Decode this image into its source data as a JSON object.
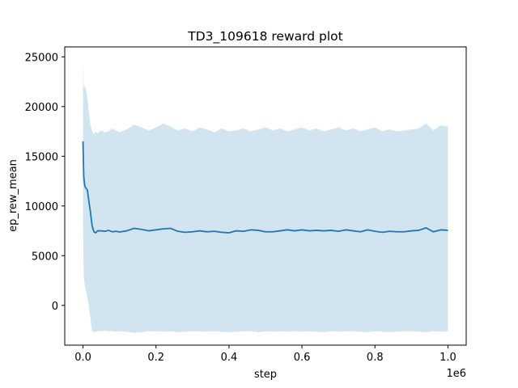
{
  "chart_data": {
    "type": "line",
    "title": "TD3_109618 reward plot",
    "xlabel": "step",
    "ylabel": "ep_rew_mean",
    "x_offset_label": "1e6",
    "xlim": [
      -50000,
      1050000
    ],
    "ylim": [
      -4000,
      26000
    ],
    "x_ticks": [
      0,
      200000,
      400000,
      600000,
      800000,
      1000000
    ],
    "x_tick_labels": [
      "0.0",
      "0.2",
      "0.4",
      "0.6",
      "0.8",
      "1.0"
    ],
    "y_ticks": [
      0,
      5000,
      10000,
      15000,
      20000,
      25000
    ],
    "y_tick_labels": [
      "0",
      "5000",
      "10000",
      "15000",
      "20000",
      "25000"
    ],
    "grid": false,
    "colors": {
      "line": "#1f77b4",
      "band": "#1f77b4"
    },
    "series": [
      {
        "x": [
          0,
          2000,
          5000,
          8000,
          12000,
          16000,
          20000,
          25000,
          30000,
          35000,
          40000,
          50000,
          60000,
          70000,
          80000,
          90000,
          100000,
          120000,
          140000,
          160000,
          180000,
          200000,
          220000,
          240000,
          260000,
          280000,
          300000,
          320000,
          340000,
          360000,
          380000,
          400000,
          420000,
          440000,
          460000,
          480000,
          500000,
          520000,
          540000,
          560000,
          580000,
          600000,
          620000,
          640000,
          660000,
          680000,
          700000,
          720000,
          740000,
          760000,
          780000,
          800000,
          820000,
          840000,
          860000,
          880000,
          900000,
          920000,
          940000,
          960000,
          980000,
          1000000
        ],
        "mean": [
          16500,
          13000,
          12000,
          11800,
          11600,
          10500,
          9500,
          8000,
          7400,
          7300,
          7500,
          7500,
          7450,
          7550,
          7400,
          7450,
          7380,
          7500,
          7750,
          7650,
          7500,
          7600,
          7700,
          7750,
          7450,
          7350,
          7400,
          7500,
          7400,
          7450,
          7350,
          7300,
          7500,
          7450,
          7600,
          7550,
          7400,
          7400,
          7500,
          7600,
          7500,
          7600,
          7500,
          7550,
          7500,
          7550,
          7450,
          7600,
          7500,
          7400,
          7600,
          7450,
          7350,
          7450,
          7400,
          7400,
          7500,
          7550,
          7800,
          7400,
          7600,
          7550
        ],
        "upper": [
          24500,
          22000,
          22000,
          21800,
          20800,
          19500,
          18200,
          17500,
          17200,
          17500,
          17300,
          17600,
          17400,
          17500,
          17800,
          17600,
          17400,
          17700,
          18200,
          17900,
          17600,
          17900,
          18300,
          18000,
          17600,
          17800,
          17500,
          17900,
          17700,
          17400,
          17800,
          17500,
          17600,
          17800,
          17500,
          17700,
          17900,
          17600,
          17800,
          17500,
          17700,
          17900,
          17600,
          17800,
          17500,
          17700,
          17900,
          17600,
          17800,
          17500,
          17700,
          17900,
          17500,
          17700,
          17500,
          17600,
          17700,
          17800,
          18300,
          17600,
          18100,
          18000
        ],
        "lower": [
          8800,
          3000,
          2000,
          1500,
          800,
          0,
          -1200,
          -2600,
          -2700,
          -2650,
          -2600,
          -2600,
          -2550,
          -2600,
          -2600,
          -2650,
          -2600,
          -2650,
          -2750,
          -2700,
          -2600,
          -2600,
          -2650,
          -2600,
          -2700,
          -2650,
          -2600,
          -2600,
          -2650,
          -2600,
          -2650,
          -2700,
          -2650,
          -2600,
          -2600,
          -2700,
          -2600,
          -2650,
          -2600,
          -2650,
          -2600,
          -2650,
          -2600,
          -2650,
          -2700,
          -2600,
          -2650,
          -2600,
          -2600,
          -2650,
          -2700,
          -2600,
          -2650,
          -2700,
          -2650,
          -2600,
          -2600,
          -2650,
          -2700,
          -2600,
          -2650,
          -2600
        ]
      }
    ]
  }
}
